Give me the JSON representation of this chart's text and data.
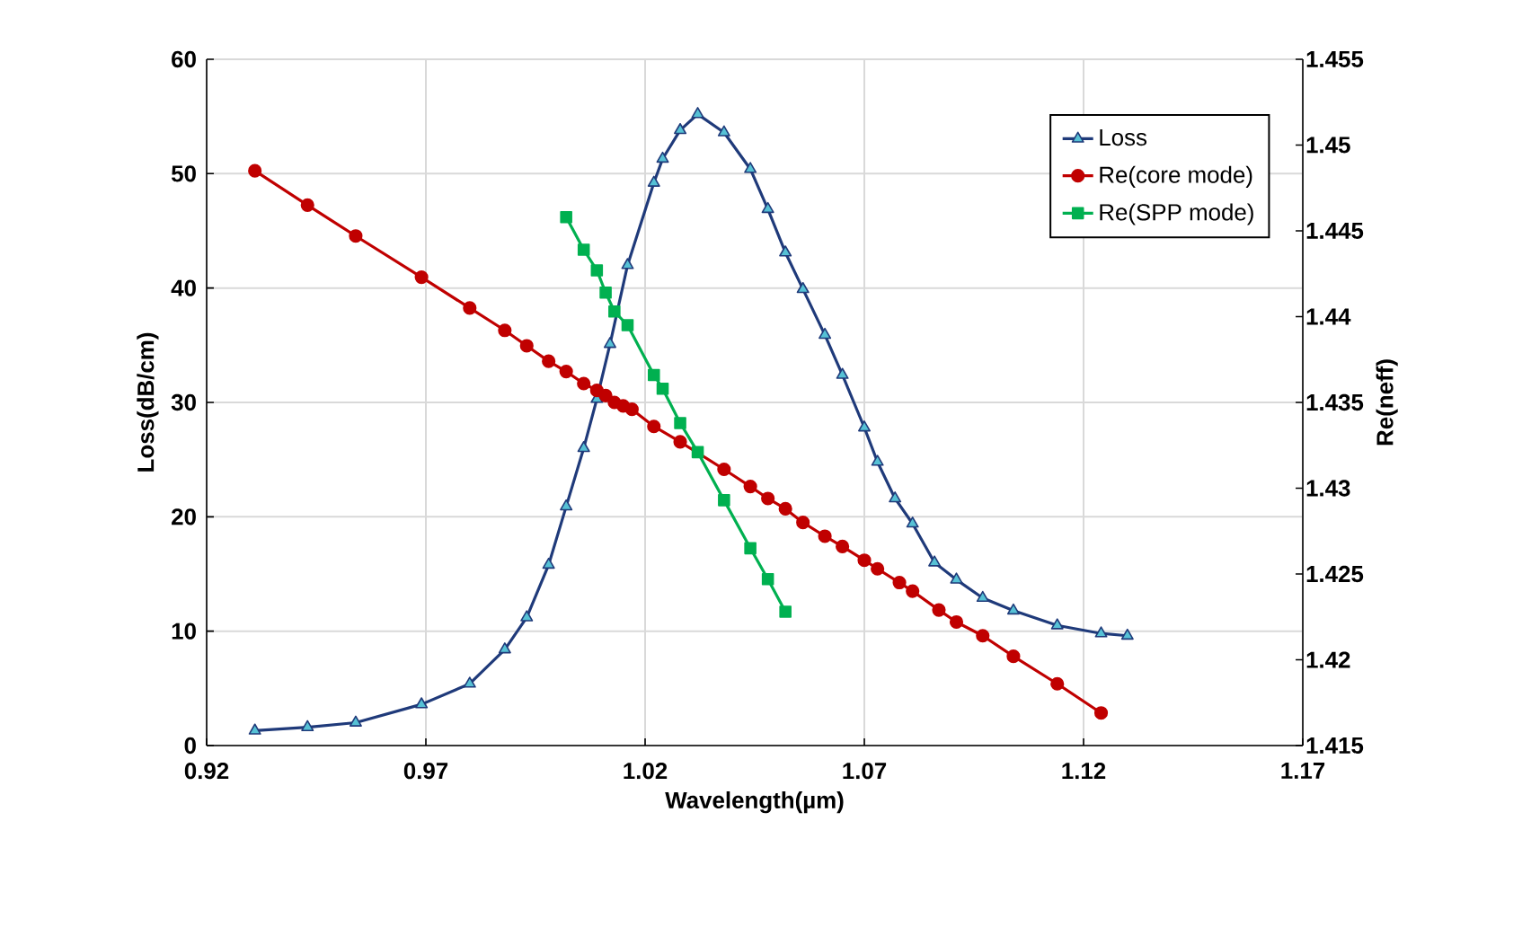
{
  "chart_data": {
    "type": "line",
    "xlabel": "Wavelength(µm)",
    "ylabel": "Loss(dB/cm)",
    "y2label": "Re(neff)",
    "xlim": [
      0.92,
      1.17
    ],
    "xticks": [
      0.92,
      0.97,
      1.02,
      1.07,
      1.12,
      1.17
    ],
    "ylim": [
      0,
      60
    ],
    "yticks": [
      0,
      10,
      20,
      30,
      40,
      50,
      60
    ],
    "y2lim": [
      1.415,
      1.455
    ],
    "y2ticks": [
      1.415,
      1.42,
      1.425,
      1.43,
      1.435,
      1.44,
      1.445,
      1.45,
      1.455
    ],
    "grid": true,
    "legend": "top right",
    "line_style": "solid",
    "series": [
      {
        "name": "Loss",
        "color": "#1f3a7a",
        "marker": "triangle",
        "x": [
          0.931,
          0.943,
          0.954,
          0.969,
          0.98,
          0.988,
          0.993,
          0.998,
          1.002,
          1.006,
          1.009,
          1.012,
          1.016,
          1.022,
          1.024,
          1.028,
          1.032,
          1.038,
          1.044,
          1.048,
          1.052,
          1.056,
          1.061,
          1.065,
          1.07,
          1.073,
          1.077,
          1.081,
          1.086,
          1.091,
          1.097,
          1.104,
          1.114,
          1.124,
          1.13
        ],
        "values": [
          1.3,
          1.6,
          2.0,
          3.6,
          5.4,
          8.4,
          11.2,
          15.8,
          20.9,
          26.0,
          30.3,
          35.1,
          42.0,
          49.2,
          51.3,
          53.8,
          55.2,
          53.6,
          50.4,
          46.9,
          43.1,
          39.9,
          35.9,
          32.4,
          27.8,
          24.8,
          21.6,
          19.4,
          16.0,
          14.5,
          12.9,
          11.8,
          10.5,
          9.8,
          9.6
        ]
      },
      {
        "name": "Re(core mode)",
        "color": "#c00000",
        "marker": "circle",
        "axis": "y2",
        "x": [
          0.931,
          0.943,
          0.954,
          0.969,
          0.98,
          0.988,
          0.993,
          0.998,
          1.002,
          1.006,
          1.009,
          1.011,
          1.013,
          1.015,
          1.017,
          1.022,
          1.028,
          1.038,
          1.044,
          1.048,
          1.052,
          1.056,
          1.061,
          1.065,
          1.07,
          1.073,
          1.078,
          1.081,
          1.087,
          1.091,
          1.097,
          1.104,
          1.114,
          1.124
        ],
        "values": [
          1.4485,
          1.4465,
          1.4447,
          1.4423,
          1.4405,
          1.4392,
          1.4383,
          1.4374,
          1.4368,
          1.4361,
          1.4357,
          1.4354,
          1.435,
          1.4348,
          1.4346,
          1.4336,
          1.4327,
          1.4311,
          1.4301,
          1.4294,
          1.4288,
          1.428,
          1.4272,
          1.4266,
          1.4258,
          1.4253,
          1.4245,
          1.424,
          1.4229,
          1.4222,
          1.4214,
          1.4202,
          1.4186,
          1.4169
        ]
      },
      {
        "name": "Re(SPP mode)",
        "color": "#00b050",
        "marker": "square",
        "axis": "y2",
        "x": [
          1.002,
          1.006,
          1.009,
          1.011,
          1.013,
          1.016,
          1.022,
          1.024,
          1.028,
          1.032,
          1.038,
          1.044,
          1.048,
          1.052
        ],
        "values": [
          1.4458,
          1.4439,
          1.4427,
          1.4414,
          1.4403,
          1.4395,
          1.4366,
          1.4358,
          1.4338,
          1.4321,
          1.4293,
          1.4265,
          1.4247,
          1.4228
        ]
      }
    ]
  }
}
